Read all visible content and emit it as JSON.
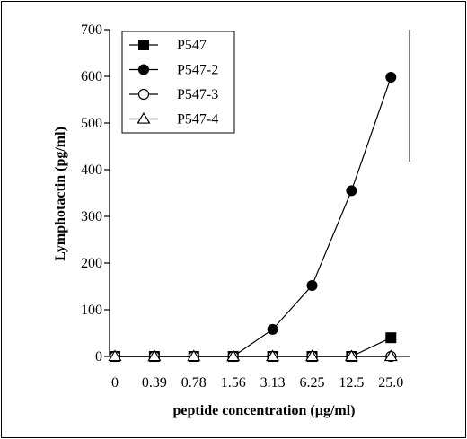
{
  "chart_data": {
    "type": "line",
    "categories": [
      "0",
      "0.39",
      "0.78",
      "1.56",
      "3.13",
      "6.25",
      "12.5",
      "25.0"
    ],
    "xlabel": "peptide concentration (µg/ml)",
    "ylabel": "Lymphotactin (pg/ml)",
    "ylim": [
      0,
      700
    ],
    "yticks": [
      "0",
      "100",
      "200",
      "300",
      "400",
      "500",
      "600",
      "700"
    ],
    "grid": false,
    "legend_position": "top-left",
    "series": [
      {
        "name": "P547",
        "marker": "filled-square",
        "values": [
          0,
          0,
          0,
          0,
          0,
          0,
          0,
          40
        ]
      },
      {
        "name": "P547-2",
        "marker": "filled-circle",
        "values": [
          0,
          0,
          0,
          0,
          58,
          152,
          355,
          598
        ]
      },
      {
        "name": "P547-3",
        "marker": "open-circle",
        "values": [
          0,
          0,
          0,
          0,
          0,
          0,
          0,
          0
        ]
      },
      {
        "name": "P547-4",
        "marker": "open-triangle",
        "values": [
          0,
          0,
          0,
          0,
          0,
          0,
          0,
          0
        ]
      }
    ]
  }
}
